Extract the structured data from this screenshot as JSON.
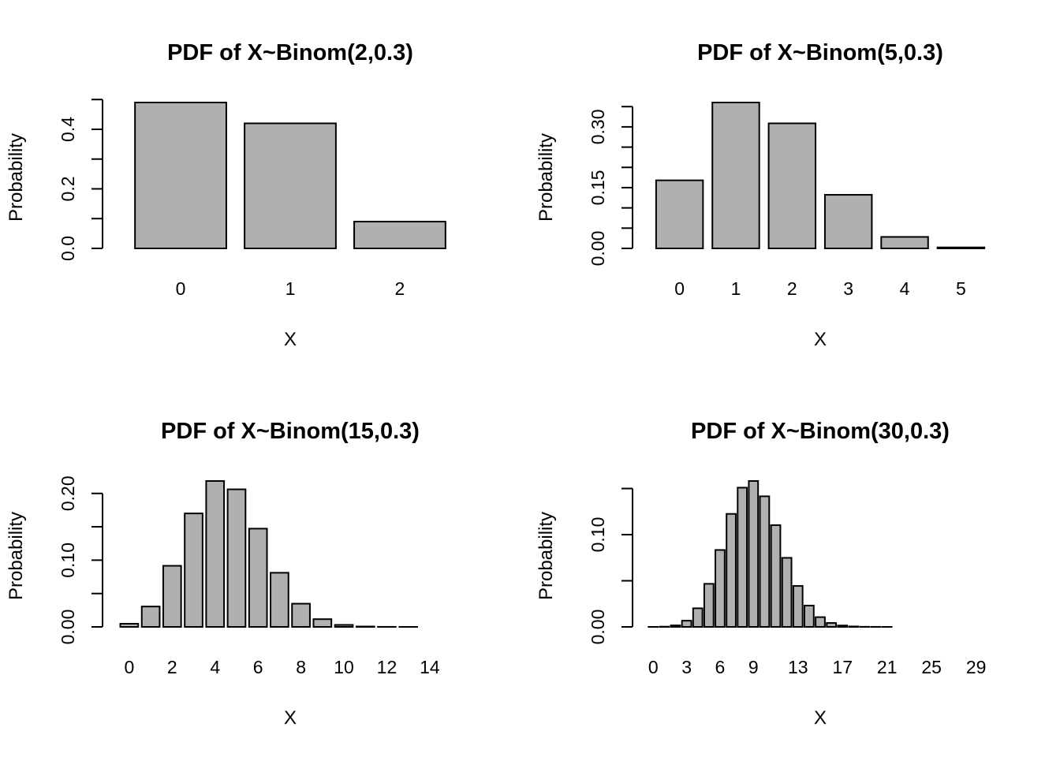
{
  "chart_data": [
    {
      "type": "bar",
      "title": "PDF of X~Binom(2,0.3)",
      "xlabel": "X",
      "ylabel": "Probability",
      "categories": [
        "0",
        "1",
        "2"
      ],
      "values": [
        0.49,
        0.42,
        0.09
      ],
      "xtick_labels": [
        "0",
        "1",
        "2"
      ],
      "yticks": [
        0.0,
        0.1,
        0.2,
        0.3,
        0.4,
        0.5
      ],
      "ytick_labels": [
        "0.0",
        "",
        "0.2",
        "",
        "0.4",
        ""
      ],
      "ylim": [
        0,
        0.49
      ],
      "grid": false
    },
    {
      "type": "bar",
      "title": "PDF of X~Binom(5,0.3)",
      "xlabel": "X",
      "ylabel": "Probability",
      "categories": [
        "0",
        "1",
        "2",
        "3",
        "4",
        "5"
      ],
      "values": [
        0.16807,
        0.36015,
        0.3087,
        0.1323,
        0.02835,
        0.00243
      ],
      "xtick_labels": [
        "0",
        "1",
        "2",
        "3",
        "4",
        "5"
      ],
      "yticks": [
        0.0,
        0.05,
        0.1,
        0.15,
        0.2,
        0.25,
        0.3,
        0.35
      ],
      "ytick_labels": [
        "0.00",
        "",
        "",
        "0.15",
        "",
        "",
        "0.30",
        ""
      ],
      "ylim": [
        0,
        0.36015
      ],
      "grid": false
    },
    {
      "type": "bar",
      "title": "PDF of X~Binom(15,0.3)",
      "xlabel": "X",
      "ylabel": "Probability",
      "categories": [
        "0",
        "1",
        "2",
        "3",
        "4",
        "5",
        "6",
        "7",
        "8",
        "9",
        "10",
        "11",
        "12",
        "13",
        "14",
        "15"
      ],
      "values": [
        0.00475,
        0.03052,
        0.09156,
        0.17004,
        0.21862,
        0.20613,
        0.14724,
        0.08113,
        0.03477,
        0.01159,
        0.00298,
        0.00058,
        8e-05,
        1e-05,
        0.0,
        0.0
      ],
      "xtick_labels": [
        "0",
        "",
        "2",
        "",
        "4",
        "",
        "6",
        "",
        "8",
        "",
        "10",
        "",
        "12",
        "",
        "14",
        ""
      ],
      "yticks": [
        0.0,
        0.05,
        0.1,
        0.15,
        0.2
      ],
      "ytick_labels": [
        "0.00",
        "",
        "0.10",
        "",
        "0.20"
      ],
      "ylim": [
        0,
        0.21862
      ],
      "grid": false
    },
    {
      "type": "bar",
      "title": "PDF of X~Binom(30,0.3)",
      "xlabel": "X",
      "ylabel": "Probability",
      "categories": [
        "0",
        "1",
        "2",
        "3",
        "4",
        "5",
        "6",
        "7",
        "8",
        "9",
        "10",
        "11",
        "12",
        "13",
        "14",
        "15",
        "16",
        "17",
        "18",
        "19",
        "20",
        "21",
        "22",
        "23",
        "24",
        "25",
        "26",
        "27",
        "28",
        "29",
        "30"
      ],
      "values": [
        2e-05,
        0.00026,
        0.00162,
        0.00672,
        0.02017,
        0.04669,
        0.08338,
        0.12251,
        0.15094,
        0.15815,
        0.14156,
        0.11031,
        0.07485,
        0.04441,
        0.02311,
        0.01057,
        0.00425,
        0.0015,
        0.00046,
        0.00012,
        3e-05,
        1e-05,
        0.0,
        0.0,
        0.0,
        0.0,
        0.0,
        0.0,
        0.0,
        0.0,
        0.0
      ],
      "xtick_labels": [
        "0",
        "",
        "",
        "3",
        "",
        "",
        "6",
        "",
        "",
        "9",
        "",
        "",
        "",
        "13",
        "",
        "",
        "",
        "17",
        "",
        "",
        "",
        "21",
        "",
        "",
        "",
        "25",
        "",
        "",
        "",
        "29",
        ""
      ],
      "yticks": [
        0.0,
        0.05,
        0.1,
        0.15
      ],
      "ytick_labels": [
        "0.00",
        "",
        "0.10",
        ""
      ],
      "ylim": [
        0,
        0.15815
      ],
      "grid": false
    }
  ]
}
